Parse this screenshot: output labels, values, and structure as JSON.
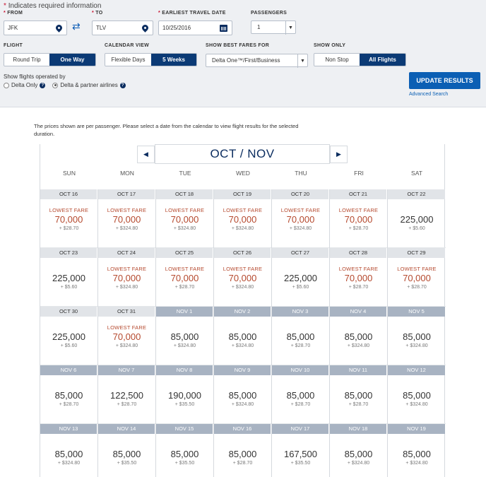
{
  "search": {
    "required_note": "Indicates required information",
    "from_label": "FROM",
    "from_value": "JFK",
    "to_label": "TO",
    "to_value": "TLV",
    "date_label": "EARLIEST TRAVEL DATE",
    "date_value": "10/25/2016",
    "passengers_label": "PASSENGERS",
    "passengers_value": "1",
    "flight_label": "FLIGHT",
    "flight_options": [
      "Round Trip",
      "One Way"
    ],
    "flight_selected": "One Way",
    "calendar_view_label": "CALENDAR VIEW",
    "calendar_options": [
      "Flexible Days",
      "5 Weeks"
    ],
    "calendar_selected": "5 Weeks",
    "best_fares_label": "SHOW BEST FARES FOR",
    "best_fares_value": "Delta One™/First/Business",
    "show_only_label": "SHOW ONLY",
    "show_only_options": [
      "Non Stop",
      "All Flights"
    ],
    "show_only_selected": "All Flights",
    "operated_label": "Show flights operated by",
    "operated_options": [
      "Delta Only",
      "Delta & partner airlines"
    ],
    "operated_selected": "Delta & partner airlines",
    "update_button": "UPDATE RESULTS",
    "advanced_search": "Advanced Search"
  },
  "calendar": {
    "note": "The prices shown are per passenger. Please select a date from the calendar to view flight results for the selected duration.",
    "month_title": "OCT / NOV",
    "days_of_week": [
      "SUN",
      "MON",
      "TUE",
      "WED",
      "THU",
      "FRI",
      "SAT"
    ],
    "lowest_label": "LOWEST FARE",
    "weeks": [
      [
        {
          "date": "OCT 16",
          "miles": "70,000",
          "tax": "+ $28.70",
          "lowest": true
        },
        {
          "date": "OCT 17",
          "miles": "70,000",
          "tax": "+ $324.80",
          "lowest": true
        },
        {
          "date": "OCT 18",
          "miles": "70,000",
          "tax": "+ $324.80",
          "lowest": true
        },
        {
          "date": "OCT 19",
          "miles": "70,000",
          "tax": "+ $324.80",
          "lowest": true
        },
        {
          "date": "OCT 20",
          "miles": "70,000",
          "tax": "+ $324.80",
          "lowest": true
        },
        {
          "date": "OCT 21",
          "miles": "70,000",
          "tax": "+ $28.70",
          "lowest": true
        },
        {
          "date": "OCT 22",
          "miles": "225,000",
          "tax": "+ $5.60",
          "lowest": false
        }
      ],
      [
        {
          "date": "OCT 23",
          "miles": "225,000",
          "tax": "+ $5.60",
          "lowest": false
        },
        {
          "date": "OCT 24",
          "miles": "70,000",
          "tax": "+ $324.80",
          "lowest": true
        },
        {
          "date": "OCT 25",
          "miles": "70,000",
          "tax": "+ $28.70",
          "lowest": true
        },
        {
          "date": "OCT 26",
          "miles": "70,000",
          "tax": "+ $324.80",
          "lowest": true
        },
        {
          "date": "OCT 27",
          "miles": "225,000",
          "tax": "+ $5.60",
          "lowest": false
        },
        {
          "date": "OCT 28",
          "miles": "70,000",
          "tax": "+ $28.70",
          "lowest": true
        },
        {
          "date": "OCT 29",
          "miles": "70,000",
          "tax": "+ $28.70",
          "lowest": true
        }
      ],
      [
        {
          "date": "OCT 30",
          "miles": "225,000",
          "tax": "+ $5.60",
          "lowest": false
        },
        {
          "date": "OCT 31",
          "miles": "70,000",
          "tax": "+ $324.80",
          "lowest": true
        },
        {
          "date": "NOV 1",
          "miles": "85,000",
          "tax": "+ $324.80",
          "lowest": false
        },
        {
          "date": "NOV 2",
          "miles": "85,000",
          "tax": "+ $324.80",
          "lowest": false
        },
        {
          "date": "NOV 3",
          "miles": "85,000",
          "tax": "+ $28.70",
          "lowest": false
        },
        {
          "date": "NOV 4",
          "miles": "85,000",
          "tax": "+ $324.80",
          "lowest": false
        },
        {
          "date": "NOV 5",
          "miles": "85,000",
          "tax": "+ $324.80",
          "lowest": false
        }
      ],
      [
        {
          "date": "NOV 6",
          "miles": "85,000",
          "tax": "+ $28.70",
          "lowest": false
        },
        {
          "date": "NOV 7",
          "miles": "122,500",
          "tax": "+ $28.70",
          "lowest": false
        },
        {
          "date": "NOV 8",
          "miles": "190,000",
          "tax": "+ $35.50",
          "lowest": false
        },
        {
          "date": "NOV 9",
          "miles": "85,000",
          "tax": "+ $324.80",
          "lowest": false
        },
        {
          "date": "NOV 10",
          "miles": "85,000",
          "tax": "+ $28.70",
          "lowest": false
        },
        {
          "date": "NOV 11",
          "miles": "85,000",
          "tax": "+ $28.70",
          "lowest": false
        },
        {
          "date": "NOV 12",
          "miles": "85,000",
          "tax": "+ $324.80",
          "lowest": false
        }
      ],
      [
        {
          "date": "NOV 13",
          "miles": "85,000",
          "tax": "+ $324.80",
          "lowest": false
        },
        {
          "date": "NOV 14",
          "miles": "85,000",
          "tax": "+ $35.50",
          "lowest": false
        },
        {
          "date": "NOV 15",
          "miles": "85,000",
          "tax": "+ $35.50",
          "lowest": false
        },
        {
          "date": "NOV 16",
          "miles": "85,000",
          "tax": "+ $28.70",
          "lowest": false
        },
        {
          "date": "NOV 17",
          "miles": "167,500",
          "tax": "+ $35.50",
          "lowest": false
        },
        {
          "date": "NOV 18",
          "miles": "85,000",
          "tax": "+ $324.80",
          "lowest": false
        },
        {
          "date": "NOV 19",
          "miles": "85,000",
          "tax": "+ $324.80",
          "lowest": false
        }
      ]
    ]
  },
  "colors": {
    "accent_navy": "#0b3a75",
    "primary_blue": "#0b5fb4",
    "lowest_fare_red": "#b5492e",
    "required_red": "#c8102e"
  }
}
